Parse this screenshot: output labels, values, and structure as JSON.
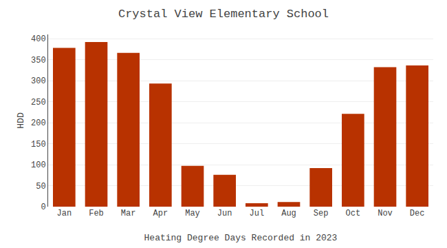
{
  "chart_data": {
    "type": "bar",
    "title": "Crystal View Elementary School",
    "xlabel": "Heating Degree Days Recorded in 2023",
    "ylabel": "HDD",
    "categories": [
      "Jan",
      "Feb",
      "Mar",
      "Apr",
      "May",
      "Jun",
      "Jul",
      "Aug",
      "Sep",
      "Oct",
      "Nov",
      "Dec"
    ],
    "values": [
      378,
      392,
      366,
      293,
      97,
      76,
      8,
      11,
      92,
      221,
      332,
      336
    ],
    "color": "#B83200",
    "ylim": [
      0,
      410
    ],
    "yticks": [
      0,
      50,
      100,
      150,
      200,
      250,
      300,
      350,
      400
    ],
    "grid": true
  }
}
